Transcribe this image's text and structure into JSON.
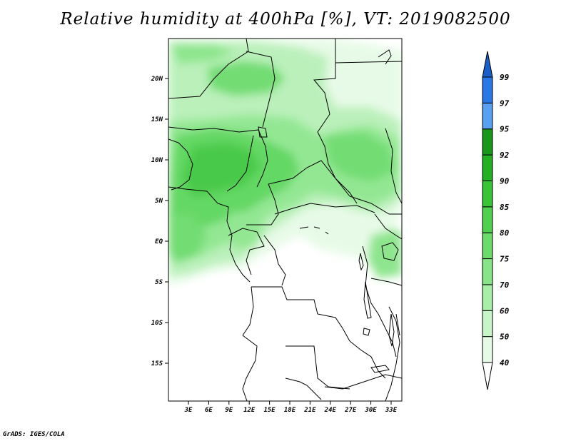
{
  "title": "Relative humidity at 400hPa [%], VT: 2019082500",
  "credit": "GrADS: IGES/COLA",
  "map": {
    "lat_labels": [
      "20N",
      "15N",
      "10N",
      "5N",
      "EQ",
      "5S",
      "10S",
      "15S"
    ],
    "lon_labels": [
      "3E",
      "6E",
      "9E",
      "12E",
      "15E",
      "18E",
      "21E",
      "24E",
      "27E",
      "30E",
      "33E"
    ]
  },
  "colorbar": {
    "levels": [
      "40",
      "50",
      "60",
      "70",
      "75",
      "80",
      "85",
      "90",
      "92",
      "95",
      "97",
      "99"
    ],
    "colors": [
      "#ffffff",
      "#e6fae6",
      "#c8f5c8",
      "#a8eda8",
      "#88e488",
      "#6cdb6c",
      "#50d050",
      "#39c339",
      "#24b024",
      "#1a961a",
      "#5aa0f0",
      "#2a78e6",
      "#1a5fc8"
    ]
  }
}
